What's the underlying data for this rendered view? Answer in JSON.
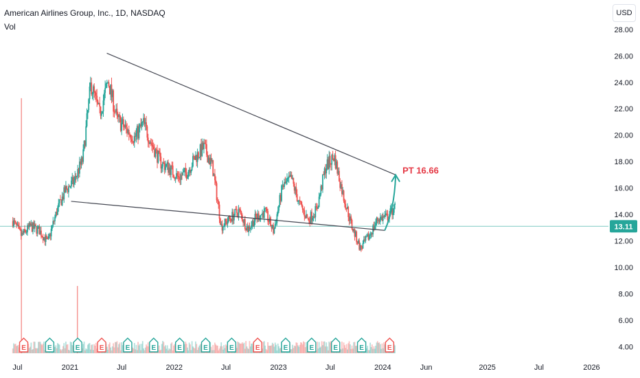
{
  "header": {
    "symbol_title": "American Airlines Group, Inc., 1D, NASDAQ",
    "volume_label": "Vol",
    "currency": "USD"
  },
  "colors": {
    "up": "#26a69a",
    "down": "#ef5350",
    "trendline": "#434651",
    "last_price_line": "#26a69a",
    "annotation": "#e53945",
    "earnings_green": "#26a69a",
    "earnings_red": "#ef5350"
  },
  "chart_data": {
    "type": "candlestick",
    "title": "American Airlines Group, Inc., 1D, NASDAQ",
    "y_ticks": [
      "4.00",
      "6.00",
      "8.00",
      "10.00",
      "12.00",
      "14.00",
      "16.00",
      "18.00",
      "20.00",
      "22.00",
      "24.00",
      "26.00",
      "28.00"
    ],
    "ylim": [
      3.2,
      29.6
    ],
    "x_ticks": [
      "Jul",
      "2021",
      "Jul",
      "2022",
      "Jul",
      "2023",
      "Jul",
      "2024",
      "Jun",
      "2025",
      "Jul",
      "2026"
    ],
    "last_price": "13.11",
    "price_path": [
      [
        "2020-06",
        13.5
      ],
      [
        "2020-07",
        12.4
      ],
      [
        "2020-08",
        13.1
      ],
      [
        "2020-09",
        12.8
      ],
      [
        "2020-10",
        11.9
      ],
      [
        "2020-11",
        14.2
      ],
      [
        "2020-12",
        15.8
      ],
      [
        "2021-01",
        16.5
      ],
      [
        "2021-02",
        18.2
      ],
      [
        "2021-03",
        23.9
      ],
      [
        "2021-04",
        21.6
      ],
      [
        "2021-05",
        24.1
      ],
      [
        "2021-06",
        21.2
      ],
      [
        "2021-07",
        20.5
      ],
      [
        "2021-08",
        19.8
      ],
      [
        "2021-09",
        20.9
      ],
      [
        "2021-10",
        19.3
      ],
      [
        "2021-11",
        17.9
      ],
      [
        "2021-12",
        17.5
      ],
      [
        "2022-01",
        16.8
      ],
      [
        "2022-02",
        17.2
      ],
      [
        "2022-03",
        18.3
      ],
      [
        "2022-04",
        19.1
      ],
      [
        "2022-05",
        17.6
      ],
      [
        "2022-06",
        13.1
      ],
      [
        "2022-07",
        13.7
      ],
      [
        "2022-08",
        14.3
      ],
      [
        "2022-09",
        12.9
      ],
      [
        "2022-10",
        13.8
      ],
      [
        "2022-11",
        14.2
      ],
      [
        "2022-12",
        12.7
      ],
      [
        "2023-01",
        16.1
      ],
      [
        "2023-02",
        16.7
      ],
      [
        "2023-03",
        14.8
      ],
      [
        "2023-04",
        13.6
      ],
      [
        "2023-05",
        14.4
      ],
      [
        "2023-06",
        17.6
      ],
      [
        "2023-07",
        18.4
      ],
      [
        "2023-08",
        15.5
      ],
      [
        "2023-09",
        13.1
      ],
      [
        "2023-10",
        11.4
      ],
      [
        "2023-11",
        12.4
      ],
      [
        "2023-12",
        13.7
      ],
      [
        "2024-01",
        13.8
      ],
      [
        "2024-02",
        14.6
      ]
    ],
    "trendlines": [
      {
        "from": [
          "2021-05-10",
          26.2
        ],
        "to": [
          "2024-02-15",
          17.0
        ]
      },
      {
        "from": [
          "2021-01-05",
          15.0
        ],
        "to": [
          "2024-01-08",
          12.8
        ]
      }
    ],
    "projection": {
      "from": [
        "2024-01-08",
        12.8
      ],
      "to": [
        "2024-02-15",
        17.0
      ],
      "label": "PT 16.66"
    },
    "volume_spikes": [
      [
        "2020-07",
        22.8
      ],
      [
        "2021-01-27",
        8.6
      ]
    ],
    "earnings_markers": [
      {
        "date": "2020-07-23",
        "color": "red"
      },
      {
        "date": "2020-10-22",
        "color": "green"
      },
      {
        "date": "2021-01-28",
        "color": "green"
      },
      {
        "date": "2021-04-22",
        "color": "red"
      },
      {
        "date": "2021-07-22",
        "color": "green"
      },
      {
        "date": "2021-10-21",
        "color": "green"
      },
      {
        "date": "2022-01-20",
        "color": "green"
      },
      {
        "date": "2022-04-21",
        "color": "green"
      },
      {
        "date": "2022-07-21",
        "color": "green"
      },
      {
        "date": "2022-10-20",
        "color": "red"
      },
      {
        "date": "2023-01-26",
        "color": "green"
      },
      {
        "date": "2023-04-27",
        "color": "green"
      },
      {
        "date": "2023-07-20",
        "color": "green"
      },
      {
        "date": "2023-10-19",
        "color": "green"
      },
      {
        "date": "2024-01-25",
        "color": "red"
      }
    ],
    "earnings_symbol": "E"
  }
}
